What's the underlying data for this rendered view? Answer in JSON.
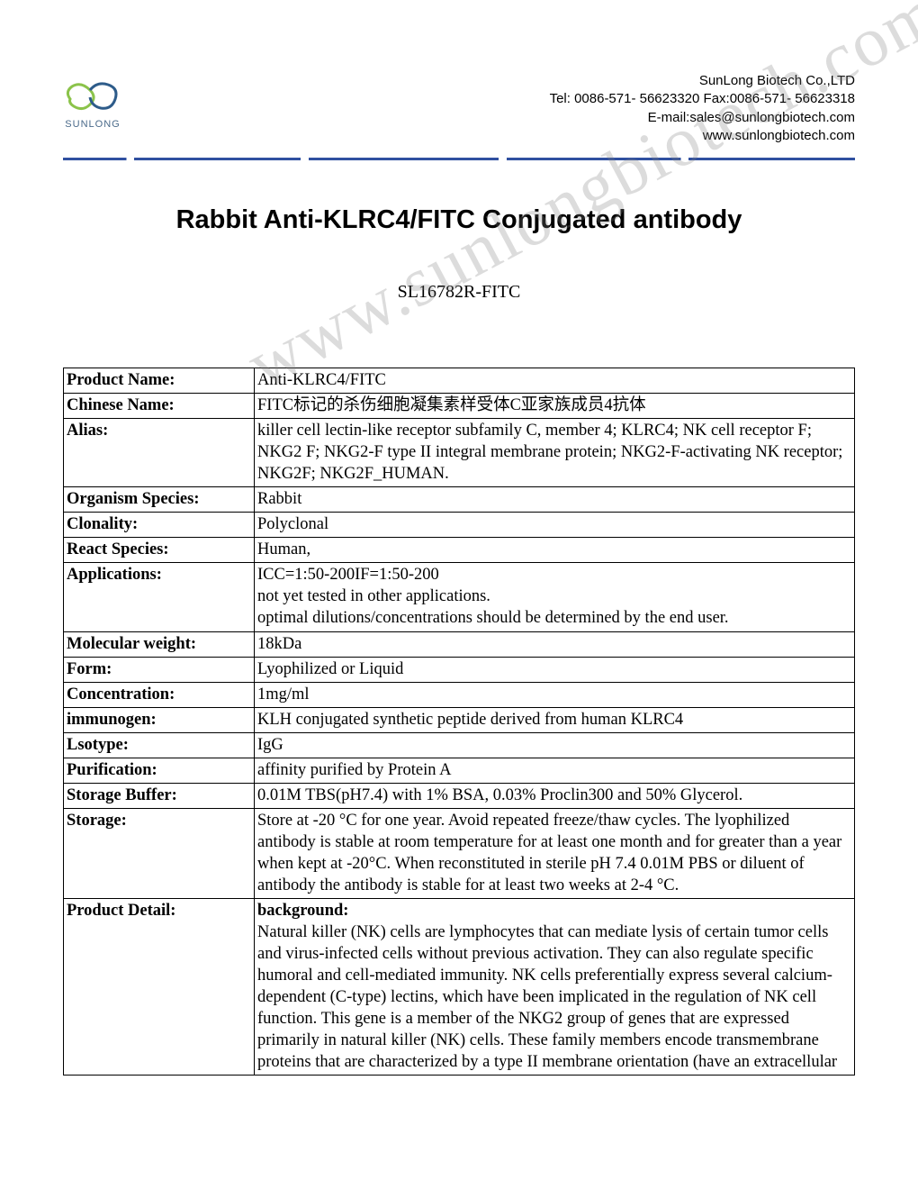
{
  "company": {
    "name": "SunLong Biotech Co.,LTD",
    "tel_fax": "Tel: 0086-571- 56623320 Fax:0086-571- 56623318",
    "email": "E-mail:sales@sunlongbiotech.com",
    "website": "www.sunlongbiotech.com",
    "logo_label": "SUNLONG"
  },
  "watermark": "www.sunlongbiotech.com",
  "title": "Rabbit Anti-KLRC4/FITC Conjugated antibody",
  "sku": "SL16782R-FITC",
  "rows": [
    {
      "label": "Product Name:",
      "value": "Anti-KLRC4/FITC"
    },
    {
      "label": "Chinese Name:",
      "value": "FITC标记的杀伤细胞凝集素样受体C亚家族成员4抗体"
    },
    {
      "label": "Alias:",
      "value": "killer cell lectin-like receptor subfamily C, member 4; KLRC4; NK cell receptor F; NKG2 F; NKG2-F type II integral membrane protein; NKG2-F-activating NK receptor; NKG2F; NKG2F_HUMAN."
    },
    {
      "label": "Organism Species:",
      "value": "Rabbit"
    },
    {
      "label": "Clonality:",
      "value": "Polyclonal"
    },
    {
      "label": "React Species:",
      "value": "Human,"
    },
    {
      "label": "Applications:",
      "value": "ICC=1:50-200IF=1:50-200\nnot yet tested in other applications.\noptimal dilutions/concentrations should be determined by the end user."
    },
    {
      "label": "Molecular weight:",
      "value": "18kDa"
    },
    {
      "label": "Form:",
      "value": "Lyophilized or Liquid"
    },
    {
      "label": "Concentration:",
      "value": "1mg/ml"
    },
    {
      "label": "immunogen:",
      "value": "KLH conjugated synthetic peptide derived from human KLRC4"
    },
    {
      "label": "Lsotype:",
      "value": "IgG"
    },
    {
      "label": "Purification:",
      "value": "affinity purified by Protein A"
    },
    {
      "label": "Storage Buffer:",
      "value": "0.01M TBS(pH7.4) with 1% BSA, 0.03% Proclin300 and 50% Glycerol."
    },
    {
      "label": "Storage:",
      "value": "Store at -20 °C for one year. Avoid repeated freeze/thaw cycles. The lyophilized antibody is stable at room temperature for at least one month and for greater than a year when kept at -20°C. When reconstituted in sterile pH 7.4 0.01M PBS or diluent of antibody the antibody is stable for at least two weeks at 2-4 °C."
    },
    {
      "label": "Product Detail:",
      "bg_label": "background:",
      "value": "Natural killer (NK) cells are lymphocytes that can mediate lysis of certain tumor cells and virus-infected cells without previous activation. They can also regulate specific humoral and cell-mediated immunity. NK cells preferentially express several calcium-dependent (C-type) lectins, which have been implicated in the regulation of NK cell function. This gene is a member of the NKG2 group of genes that are expressed primarily in natural killer (NK) cells. These family members encode transmembrane proteins that are characterized by a type II membrane orientation (have an extracellular"
    }
  ],
  "colors": {
    "text": "#000000",
    "divider": "#3050a0",
    "watermark": "rgba(130,130,130,0.28)",
    "logo_green": "#8bc34a",
    "logo_blue": "#2e5c8a"
  }
}
